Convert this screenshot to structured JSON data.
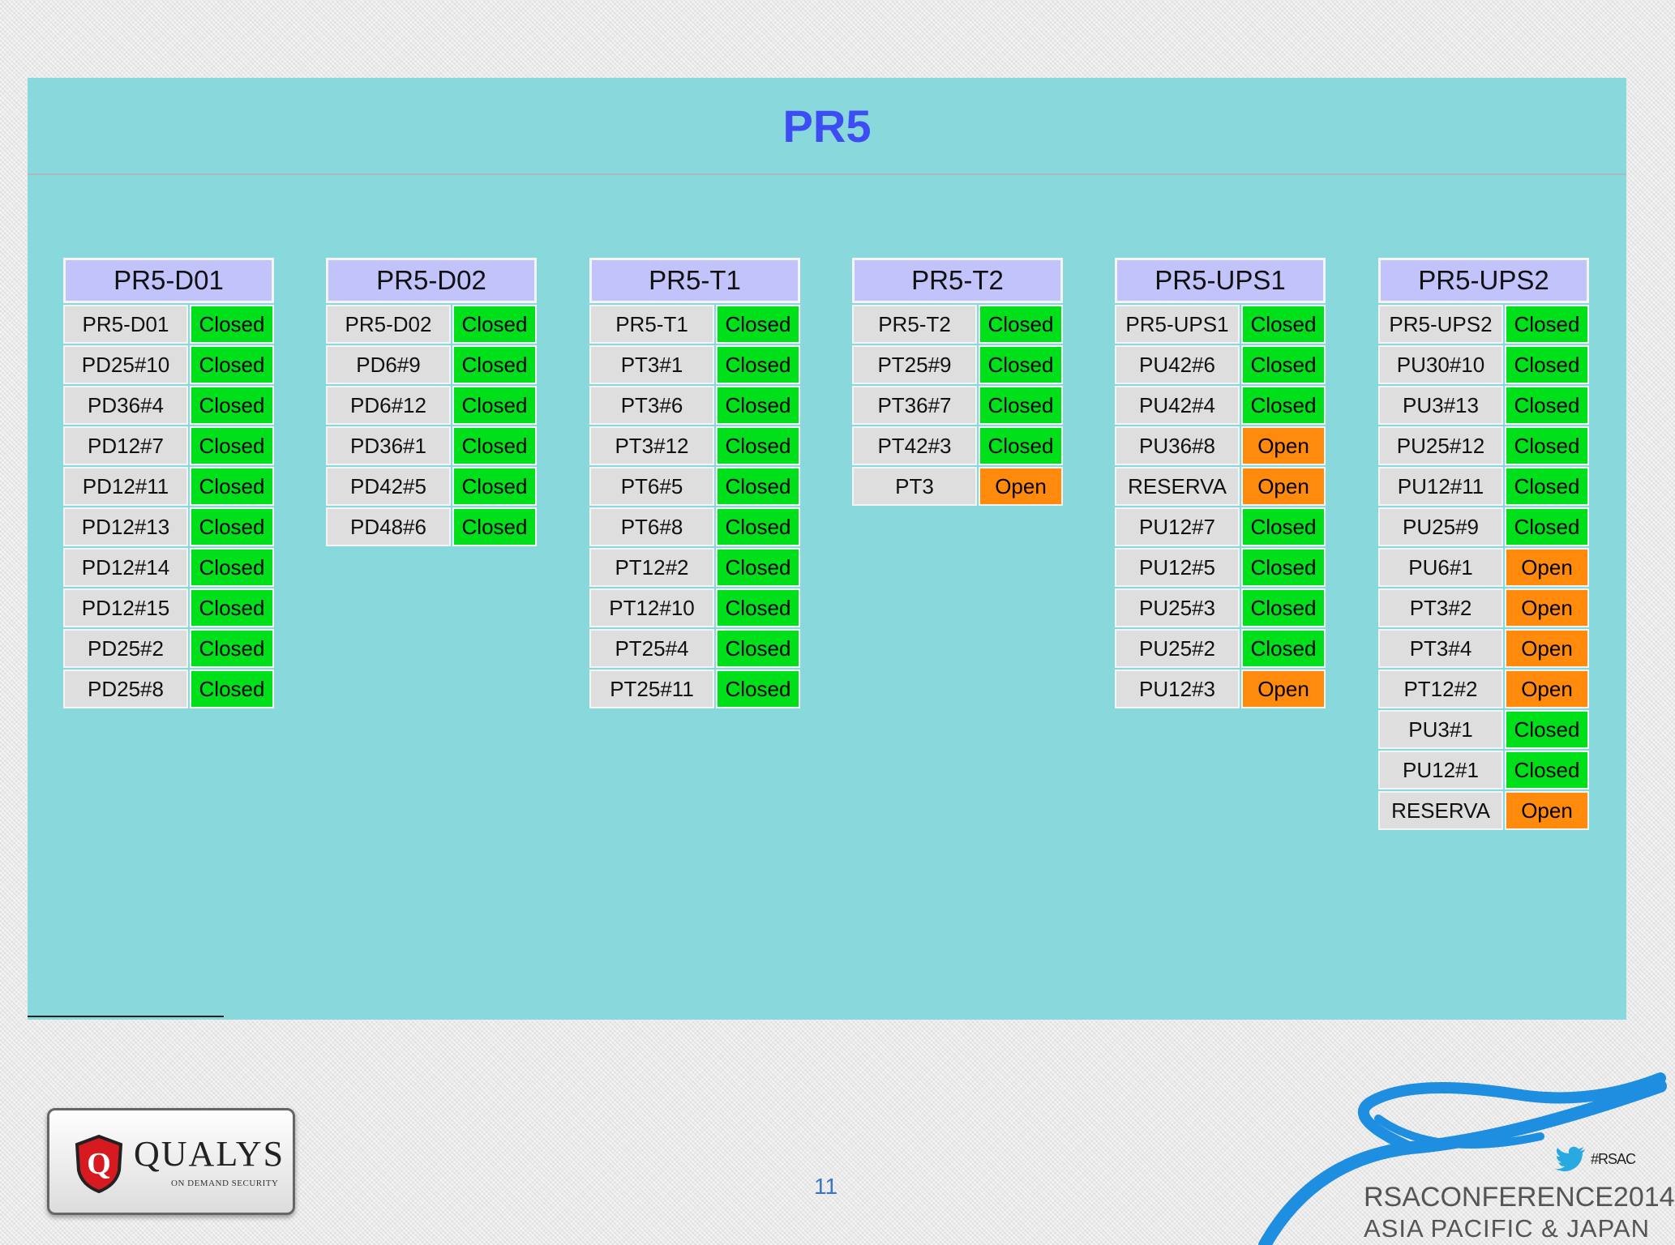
{
  "title": "PR5",
  "groups": [
    {
      "header": "PR5-D01",
      "rows": [
        {
          "name": "PR5-D01",
          "status": "Closed"
        },
        {
          "name": "PD25#10",
          "status": "Closed"
        },
        {
          "name": "PD36#4",
          "status": "Closed"
        },
        {
          "name": "PD12#7",
          "status": "Closed"
        },
        {
          "name": "PD12#11",
          "status": "Closed"
        },
        {
          "name": "PD12#13",
          "status": "Closed"
        },
        {
          "name": "PD12#14",
          "status": "Closed"
        },
        {
          "name": "PD12#15",
          "status": "Closed"
        },
        {
          "name": "PD25#2",
          "status": "Closed"
        },
        {
          "name": "PD25#8",
          "status": "Closed"
        }
      ]
    },
    {
      "header": "PR5-D02",
      "rows": [
        {
          "name": "PR5-D02",
          "status": "Closed"
        },
        {
          "name": "PD6#9",
          "status": "Closed"
        },
        {
          "name": "PD6#12",
          "status": "Closed"
        },
        {
          "name": "PD36#1",
          "status": "Closed"
        },
        {
          "name": "PD42#5",
          "status": "Closed"
        },
        {
          "name": "PD48#6",
          "status": "Closed"
        }
      ]
    },
    {
      "header": "PR5-T1",
      "rows": [
        {
          "name": "PR5-T1",
          "status": "Closed"
        },
        {
          "name": "PT3#1",
          "status": "Closed"
        },
        {
          "name": "PT3#6",
          "status": "Closed"
        },
        {
          "name": "PT3#12",
          "status": "Closed"
        },
        {
          "name": "PT6#5",
          "status": "Closed"
        },
        {
          "name": "PT6#8",
          "status": "Closed"
        },
        {
          "name": "PT12#2",
          "status": "Closed"
        },
        {
          "name": "PT12#10",
          "status": "Closed"
        },
        {
          "name": "PT25#4",
          "status": "Closed"
        },
        {
          "name": "PT25#11",
          "status": "Closed"
        }
      ]
    },
    {
      "header": "PR5-T2",
      "rows": [
        {
          "name": "PR5-T2",
          "status": "Closed"
        },
        {
          "name": "PT25#9",
          "status": "Closed"
        },
        {
          "name": "PT36#7",
          "status": "Closed"
        },
        {
          "name": "PT42#3",
          "status": "Closed"
        },
        {
          "name": "PT3",
          "status": "Open"
        }
      ]
    },
    {
      "header": "PR5-UPS1",
      "rows": [
        {
          "name": "PR5-UPS1",
          "status": "Closed"
        },
        {
          "name": "PU42#6",
          "status": "Closed"
        },
        {
          "name": "PU42#4",
          "status": "Closed"
        },
        {
          "name": "PU36#8",
          "status": "Open"
        },
        {
          "name": "RESERVA",
          "status": "Open"
        },
        {
          "name": "PU12#7",
          "status": "Closed"
        },
        {
          "name": "PU12#5",
          "status": "Closed"
        },
        {
          "name": "PU25#3",
          "status": "Closed"
        },
        {
          "name": "PU25#2",
          "status": "Closed"
        },
        {
          "name": "PU12#3",
          "status": "Open"
        }
      ]
    },
    {
      "header": "PR5-UPS2",
      "rows": [
        {
          "name": "PR5-UPS2",
          "status": "Closed"
        },
        {
          "name": "PU30#10",
          "status": "Closed"
        },
        {
          "name": "PU3#13",
          "status": "Closed"
        },
        {
          "name": "PU25#12",
          "status": "Closed"
        },
        {
          "name": "PU12#11",
          "status": "Closed"
        },
        {
          "name": "PU25#9",
          "status": "Closed"
        },
        {
          "name": "PU6#1",
          "status": "Open"
        },
        {
          "name": "PT3#2",
          "status": "Open"
        },
        {
          "name": "PT3#4",
          "status": "Open"
        },
        {
          "name": "PT12#2",
          "status": "Open"
        },
        {
          "name": "PU3#1",
          "status": "Closed"
        },
        {
          "name": "PU12#1",
          "status": "Closed"
        },
        {
          "name": "RESERVA",
          "status": "Open"
        }
      ]
    }
  ],
  "colors": {
    "panel": "#89d8db",
    "title": "#3e4cf3",
    "header": "#c2c3fb",
    "closed": "#00e01a",
    "open": "#ff8a0c"
  },
  "footer": {
    "logo_name": "QUALYS",
    "logo_mark": "Q",
    "logo_tagline": "ON DEMAND SECURITY",
    "page_number": "11",
    "hashtag": "#RSAC",
    "conference_line1": "RSACONFERENCE2014",
    "conference_line2": "ASIA PACIFIC & JAPAN",
    "twitter_icon": "twitter-bird-icon"
  }
}
